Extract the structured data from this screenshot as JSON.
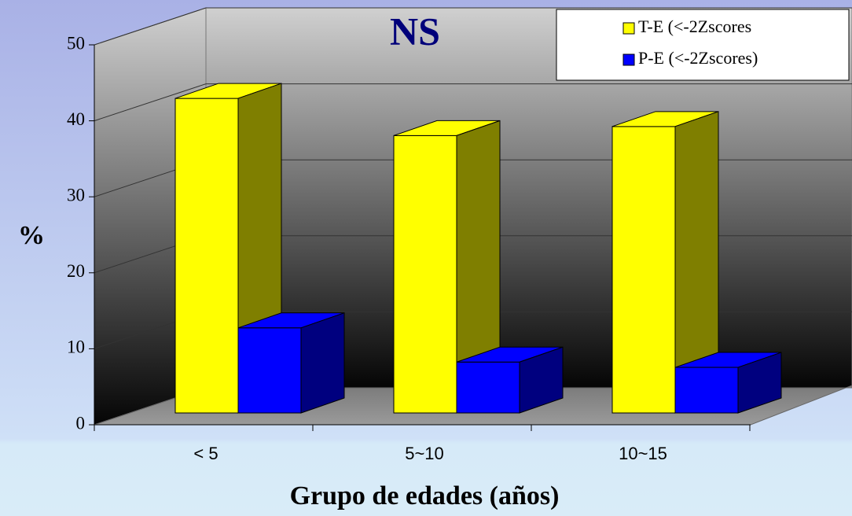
{
  "chart_data": {
    "type": "bar3d",
    "title": "NS",
    "categories": [
      "< 5",
      "5~10",
      "10~15"
    ],
    "series": [
      {
        "name": "T-E (<-2Zscores",
        "color": "#ffff00",
        "values": [
          41.4,
          36.5,
          37.7
        ]
      },
      {
        "name": "P-E (<-2Zscores)",
        "color": "#0000ff",
        "values": [
          11.2,
          6.7,
          6.0
        ]
      }
    ],
    "ylim": [
      0,
      50
    ],
    "yticks": [
      0,
      10,
      20,
      30,
      40,
      50
    ],
    "grid": true,
    "y_label": "%",
    "x_label": "Grupo de edades (años)",
    "legend": "top-right"
  }
}
